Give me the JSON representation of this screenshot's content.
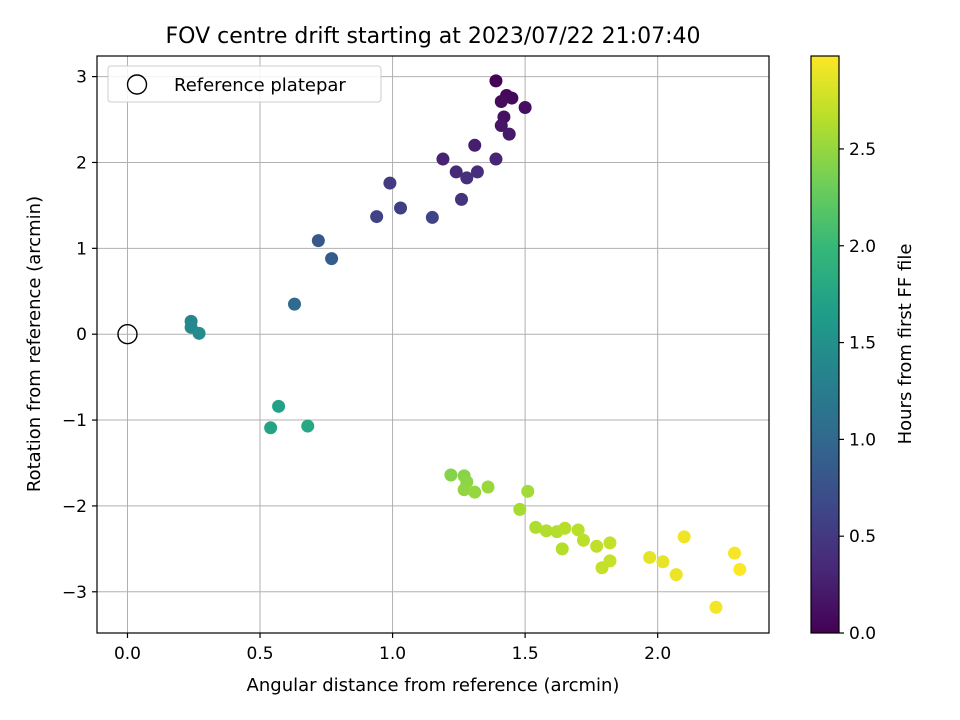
{
  "chart_data": {
    "type": "scatter",
    "title": "FOV centre drift starting at 2023/07/22 21:07:40",
    "xlabel": "Angular distance from reference (arcmin)",
    "ylabel": "Rotation from reference (arcmin)",
    "xlim": [
      -0.115,
      2.42
    ],
    "ylim": [
      -3.48,
      3.24
    ],
    "xticks": [
      0.0,
      0.5,
      1.0,
      1.5,
      2.0
    ],
    "xtick_labels": [
      "0.0",
      "0.5",
      "1.0",
      "1.5",
      "2.0"
    ],
    "yticks": [
      -3,
      -2,
      -1,
      0,
      1,
      2,
      3
    ],
    "ytick_labels": [
      "−3",
      "−2",
      "−1",
      "0",
      "1",
      "2",
      "3"
    ],
    "grid": true,
    "legend": {
      "position": "top-left",
      "entries": [
        "Reference platepar"
      ]
    },
    "reference_point": {
      "label": "Reference platepar",
      "x": 0.0,
      "y": 0.0,
      "marker": "open-circle"
    },
    "colorbar": {
      "label": "Hours from first FF file",
      "colormap": "viridis",
      "range": [
        0.0,
        2.98
      ],
      "ticks": [
        0.0,
        0.5,
        1.0,
        1.5,
        2.0,
        2.5
      ],
      "tick_labels": [
        "0.0",
        "0.5",
        "1.0",
        "1.5",
        "2.0",
        "2.5"
      ]
    },
    "points": [
      {
        "x": 1.39,
        "y": 2.95,
        "c": 0.02
      },
      {
        "x": 1.43,
        "y": 2.78,
        "c": 0.05
      },
      {
        "x": 1.45,
        "y": 2.75,
        "c": 0.07
      },
      {
        "x": 1.41,
        "y": 2.71,
        "c": 0.09
      },
      {
        "x": 1.5,
        "y": 2.64,
        "c": 0.11
      },
      {
        "x": 1.42,
        "y": 2.53,
        "c": 0.14
      },
      {
        "x": 1.41,
        "y": 2.43,
        "c": 0.17
      },
      {
        "x": 1.44,
        "y": 2.33,
        "c": 0.2
      },
      {
        "x": 1.31,
        "y": 2.2,
        "c": 0.25
      },
      {
        "x": 1.19,
        "y": 2.04,
        "c": 0.29
      },
      {
        "x": 1.39,
        "y": 2.04,
        "c": 0.31
      },
      {
        "x": 1.24,
        "y": 1.89,
        "c": 0.36
      },
      {
        "x": 1.32,
        "y": 1.89,
        "c": 0.38
      },
      {
        "x": 1.28,
        "y": 1.82,
        "c": 0.4
      },
      {
        "x": 1.26,
        "y": 1.57,
        "c": 0.45
      },
      {
        "x": 0.99,
        "y": 1.76,
        "c": 0.52
      },
      {
        "x": 1.03,
        "y": 1.47,
        "c": 0.56
      },
      {
        "x": 0.94,
        "y": 1.37,
        "c": 0.59
      },
      {
        "x": 1.15,
        "y": 1.36,
        "c": 0.61
      },
      {
        "x": 0.72,
        "y": 1.09,
        "c": 0.82
      },
      {
        "x": 0.77,
        "y": 0.88,
        "c": 0.88
      },
      {
        "x": 0.63,
        "y": 0.35,
        "c": 1.02
      },
      {
        "x": 0.24,
        "y": 0.15,
        "c": 1.38
      },
      {
        "x": 0.24,
        "y": 0.08,
        "c": 1.41
      },
      {
        "x": 0.27,
        "y": 0.01,
        "c": 1.44
      },
      {
        "x": 0.57,
        "y": -0.84,
        "c": 1.7
      },
      {
        "x": 0.54,
        "y": -1.09,
        "c": 1.73
      },
      {
        "x": 0.68,
        "y": -1.07,
        "c": 1.77
      },
      {
        "x": 1.22,
        "y": -1.64,
        "c": 2.42
      },
      {
        "x": 1.27,
        "y": -1.65,
        "c": 2.44
      },
      {
        "x": 1.28,
        "y": -1.72,
        "c": 2.46
      },
      {
        "x": 1.27,
        "y": -1.81,
        "c": 2.48
      },
      {
        "x": 1.31,
        "y": -1.84,
        "c": 2.5
      },
      {
        "x": 1.36,
        "y": -1.78,
        "c": 2.52
      },
      {
        "x": 1.51,
        "y": -1.83,
        "c": 2.56
      },
      {
        "x": 1.48,
        "y": -2.04,
        "c": 2.58
      },
      {
        "x": 1.54,
        "y": -2.25,
        "c": 2.62
      },
      {
        "x": 1.58,
        "y": -2.29,
        "c": 2.63
      },
      {
        "x": 1.62,
        "y": -2.3,
        "c": 2.64
      },
      {
        "x": 1.65,
        "y": -2.26,
        "c": 2.66
      },
      {
        "x": 1.64,
        "y": -2.5,
        "c": 2.65
      },
      {
        "x": 1.7,
        "y": -2.28,
        "c": 2.67
      },
      {
        "x": 1.72,
        "y": -2.4,
        "c": 2.68
      },
      {
        "x": 1.77,
        "y": -2.47,
        "c": 2.7
      },
      {
        "x": 1.82,
        "y": -2.43,
        "c": 2.72
      },
      {
        "x": 1.82,
        "y": -2.64,
        "c": 2.73
      },
      {
        "x": 1.79,
        "y": -2.72,
        "c": 2.72
      },
      {
        "x": 1.97,
        "y": -2.6,
        "c": 2.86
      },
      {
        "x": 2.02,
        "y": -2.65,
        "c": 2.88
      },
      {
        "x": 2.07,
        "y": -2.8,
        "c": 2.9
      },
      {
        "x": 2.1,
        "y": -2.36,
        "c": 2.91
      },
      {
        "x": 2.22,
        "y": -3.18,
        "c": 2.93
      },
      {
        "x": 2.29,
        "y": -2.55,
        "c": 2.95
      },
      {
        "x": 2.31,
        "y": -2.74,
        "c": 2.97
      }
    ]
  }
}
